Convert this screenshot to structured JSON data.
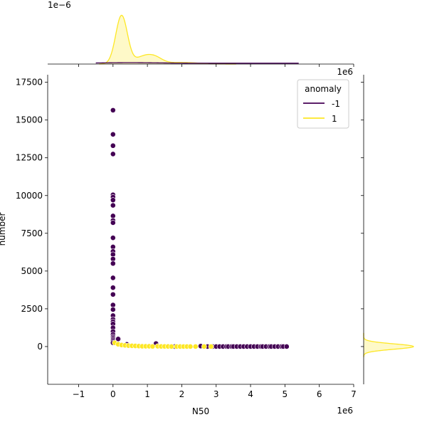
{
  "chart_data": {
    "type": "scatter",
    "kind": "jointplot with marginal KDE",
    "xlabel": "N50",
    "ylabel": "number",
    "x_offset_label": "1e6",
    "y_offset_label": "1e6",
    "top_offset_label": "1e−6",
    "xlim": [
      -1.9,
      7.0
    ],
    "ylim": [
      -2500,
      18000
    ],
    "x_ticks": [
      -1,
      0,
      1,
      2,
      3,
      4,
      5,
      6,
      7
    ],
    "x_tick_labels": [
      "−1",
      "0",
      "1",
      "2",
      "3",
      "4",
      "5",
      "6",
      "7"
    ],
    "y_ticks": [
      0,
      2500,
      5000,
      7500,
      10000,
      12500,
      15000,
      17500
    ],
    "y_tick_labels": [
      "0",
      "2500",
      "5000",
      "7500",
      "10000",
      "12500",
      "15000",
      "17500"
    ],
    "legend": {
      "title": "anomaly",
      "placement": "top-right",
      "entries": [
        {
          "label": "-1",
          "color": "#440154"
        },
        {
          "label": "1",
          "color": "#fde725"
        }
      ]
    },
    "series": [
      {
        "name": "-1",
        "color": "#440154",
        "x": [
          0,
          0,
          0,
          0,
          0,
          0,
          0,
          0,
          0,
          0,
          0,
          0,
          0,
          0,
          0,
          0,
          0,
          0,
          0,
          0,
          0,
          0,
          0,
          0,
          0,
          0,
          0,
          0,
          0,
          0,
          0,
          0,
          0,
          0,
          0.15,
          0.4,
          1.25,
          1.8,
          2.55,
          2.75,
          2.9,
          3.0,
          3.1,
          3.2,
          3.3,
          3.35,
          3.45,
          3.5,
          3.6,
          3.7,
          3.8,
          3.9,
          4.0,
          4.1,
          4.2,
          4.3,
          4.35,
          4.45,
          4.55,
          4.6,
          4.7,
          4.8,
          4.9,
          4.95,
          5.05
        ],
        "y": [
          15650,
          14050,
          13300,
          12750,
          10050,
          9900,
          9700,
          9350,
          8650,
          8350,
          8200,
          7200,
          6600,
          6300,
          6100,
          5800,
          5500,
          4550,
          3900,
          3450,
          2750,
          2450,
          2050,
          1800,
          1650,
          1500,
          1250,
          1000,
          800,
          650,
          550,
          450,
          350,
          250,
          500,
          150,
          200,
          0,
          30,
          0,
          0,
          0,
          0,
          0,
          0,
          0,
          0,
          0,
          0,
          0,
          0,
          0,
          0,
          0,
          0,
          0,
          0,
          0,
          0,
          0,
          0,
          0,
          0,
          0,
          0
        ]
      },
      {
        "name": "1",
        "color": "#fde725",
        "x": [
          0.05,
          0.15,
          0.25,
          0.35,
          0.45,
          0.55,
          0.65,
          0.75,
          0.85,
          0.95,
          1.05,
          1.15,
          1.3,
          1.4,
          1.5,
          1.6,
          1.7,
          1.85,
          1.95,
          2.05,
          2.15,
          2.25,
          2.4,
          2.65,
          2.85
        ],
        "y": [
          250,
          150,
          100,
          80,
          60,
          50,
          40,
          30,
          20,
          20,
          20,
          10,
          20,
          10,
          10,
          5,
          0,
          0,
          0,
          0,
          0,
          0,
          0,
          0,
          0
        ]
      }
    ]
  }
}
